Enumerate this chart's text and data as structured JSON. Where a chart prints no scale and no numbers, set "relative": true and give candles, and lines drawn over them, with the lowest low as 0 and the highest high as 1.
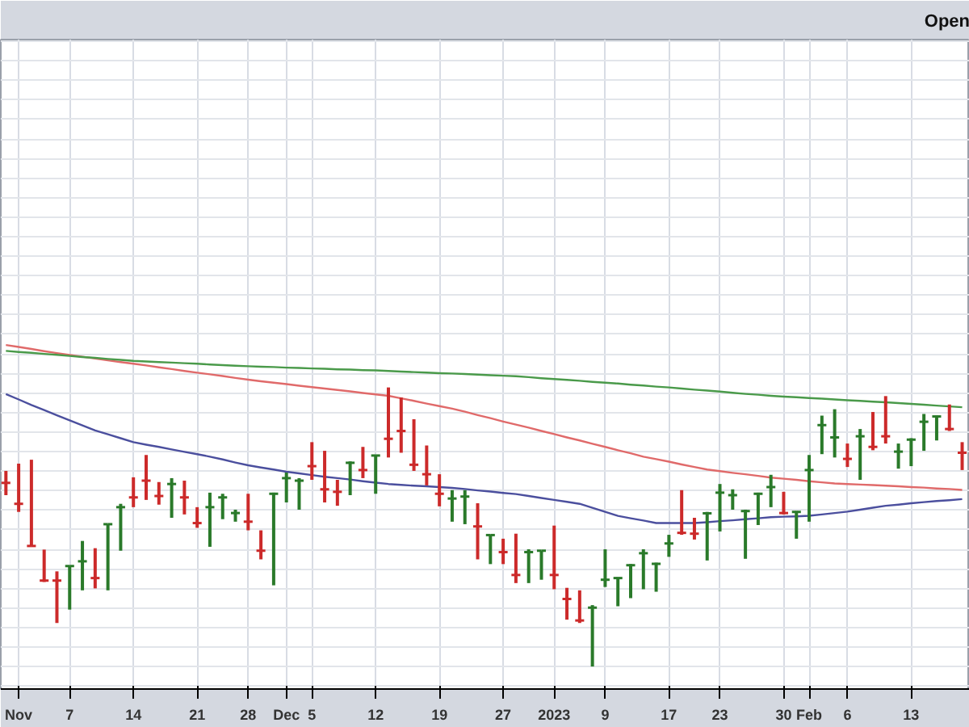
{
  "chart_data": {
    "type": "candlestick",
    "relative": true,
    "grid": true,
    "annotations": [
      "Open"
    ],
    "categories": [
      null,
      "Nov",
      null,
      null,
      null,
      "7",
      null,
      null,
      null,
      null,
      "14",
      null,
      null,
      null,
      null,
      "21",
      null,
      null,
      null,
      "28",
      null,
      null,
      "Dec",
      null,
      "5",
      null,
      null,
      null,
      null,
      "12",
      null,
      null,
      null,
      null,
      "19",
      null,
      null,
      null,
      null,
      "27",
      null,
      null,
      null,
      "2023",
      null,
      null,
      null,
      "9",
      null,
      null,
      null,
      null,
      "17",
      null,
      null,
      null,
      "23",
      null,
      null,
      null,
      null,
      "30",
      null,
      "Feb",
      null,
      null,
      "6",
      null,
      null,
      null,
      null,
      "13",
      null,
      null,
      null,
      null
    ],
    "ohlc": [
      [
        0.658,
        0.701,
        0.614,
        0.658
      ],
      [
        0.583,
        0.727,
        0.554,
        0.583
      ],
      [
        0.432,
        0.741,
        0.432,
        0.432
      ],
      [
        0.308,
        0.419,
        0.303,
        0.308
      ],
      [
        0.308,
        0.341,
        0.156,
        0.308
      ],
      [
        0.36,
        0.36,
        0.204,
        0.36
      ],
      [
        0.377,
        0.45,
        0.273,
        0.377
      ],
      [
        0.317,
        0.424,
        0.28,
        0.317
      ],
      [
        0.51,
        0.51,
        0.273,
        0.51
      ],
      [
        0.571,
        0.583,
        0.415,
        0.571
      ],
      [
        0.606,
        0.678,
        0.571,
        0.606
      ],
      [
        0.666,
        0.758,
        0.597,
        0.666
      ],
      [
        0.611,
        0.661,
        0.58,
        0.611
      ],
      [
        0.654,
        0.675,
        0.533,
        0.654
      ],
      [
        0.606,
        0.666,
        0.545,
        0.606
      ],
      [
        0.514,
        0.571,
        0.497,
        0.514
      ],
      [
        0.571,
        0.623,
        0.429,
        0.571
      ],
      [
        0.606,
        0.619,
        0.528,
        0.606
      ],
      [
        0.55,
        0.562,
        0.519,
        0.55
      ],
      [
        0.519,
        0.619,
        0.488,
        0.519
      ],
      [
        0.415,
        0.488,
        0.384,
        0.415
      ],
      [
        0.619,
        0.623,
        0.291,
        0.619
      ],
      [
        0.675,
        0.695,
        0.588,
        0.675
      ],
      [
        0.666,
        0.675,
        0.562,
        0.666
      ],
      [
        0.718,
        0.804,
        0.669,
        0.718
      ],
      [
        0.635,
        0.773,
        0.588,
        0.635
      ],
      [
        0.626,
        0.669,
        0.576,
        0.626
      ],
      [
        0.73,
        0.735,
        0.614,
        0.73
      ],
      [
        0.704,
        0.787,
        0.675,
        0.704
      ],
      [
        0.756,
        0.758,
        0.619,
        0.756
      ],
      [
        0.816,
        1.0,
        0.749,
        0.816
      ],
      [
        0.844,
        0.964,
        0.766,
        0.844
      ],
      [
        0.723,
        0.886,
        0.701,
        0.723
      ],
      [
        0.689,
        0.792,
        0.649,
        0.689
      ],
      [
        0.619,
        0.689,
        0.574,
        0.619
      ],
      [
        0.602,
        0.632,
        0.519,
        0.602
      ],
      [
        0.609,
        0.632,
        0.51,
        0.609
      ],
      [
        0.502,
        0.585,
        0.384,
        0.502
      ],
      [
        0.471,
        0.472,
        0.367,
        0.471
      ],
      [
        0.41,
        0.458,
        0.367,
        0.41
      ],
      [
        0.328,
        0.476,
        0.299,
        0.328
      ],
      [
        0.41,
        0.42,
        0.299,
        0.41
      ],
      [
        0.415,
        0.415,
        0.311,
        0.415
      ],
      [
        0.328,
        0.505,
        0.277,
        0.328
      ],
      [
        0.242,
        0.282,
        0.168,
        0.242
      ],
      [
        0.165,
        0.273,
        0.156,
        0.165
      ],
      [
        0.211,
        0.22,
        0.0,
        0.211
      ],
      [
        0.311,
        0.42,
        0.285,
        0.311
      ],
      [
        0.317,
        0.32,
        0.216,
        0.317
      ],
      [
        0.363,
        0.367,
        0.245,
        0.363
      ],
      [
        0.406,
        0.42,
        0.277,
        0.406
      ],
      [
        0.368,
        0.372,
        0.268,
        0.368
      ],
      [
        0.441,
        0.472,
        0.393,
        0.441
      ],
      [
        0.479,
        0.632,
        0.472,
        0.479
      ],
      [
        0.476,
        0.533,
        0.455,
        0.476
      ],
      [
        0.549,
        0.554,
        0.38,
        0.549
      ],
      [
        0.623,
        0.654,
        0.484,
        0.623
      ],
      [
        0.614,
        0.635,
        0.562,
        0.614
      ],
      [
        0.557,
        0.562,
        0.386,
        0.557
      ],
      [
        0.619,
        0.623,
        0.507,
        0.619
      ],
      [
        0.643,
        0.687,
        0.571,
        0.643
      ],
      [
        0.55,
        0.626,
        0.545,
        0.55
      ],
      [
        0.554,
        0.557,
        0.458,
        0.554
      ],
      [
        0.704,
        0.758,
        0.519,
        0.704
      ],
      [
        0.865,
        0.899,
        0.761,
        0.865
      ],
      [
        0.821,
        0.922,
        0.749,
        0.821
      ],
      [
        0.744,
        0.799,
        0.715,
        0.744
      ],
      [
        0.825,
        0.851,
        0.669,
        0.825
      ],
      [
        0.787,
        0.912,
        0.775,
        0.787
      ],
      [
        0.825,
        0.969,
        0.799,
        0.825
      ],
      [
        0.77,
        0.799,
        0.709,
        0.77
      ],
      [
        0.813,
        0.818,
        0.718,
        0.813
      ],
      [
        0.877,
        0.905,
        0.773,
        0.877
      ],
      [
        0.896,
        0.899,
        0.81,
        0.896
      ],
      [
        0.851,
        0.939,
        0.844,
        0.851
      ],
      [
        0.766,
        0.804,
        0.704,
        0.766
      ]
    ],
    "colors": [
      "#cc2a2a",
      "#cc2a2a",
      "#cc2a2a",
      "#cc2a2a",
      "#cc2a2a",
      "#2a7a2a",
      "#2a7a2a",
      "#cc2a2a",
      "#2a7a2a",
      "#2a7a2a",
      "#cc2a2a",
      "#cc2a2a",
      "#cc2a2a",
      "#2a7a2a",
      "#cc2a2a",
      "#cc2a2a",
      "#2a7a2a",
      "#2a7a2a",
      "#2a7a2a",
      "#cc2a2a",
      "#cc2a2a",
      "#2a7a2a",
      "#2a7a2a",
      "#2a7a2a",
      "#cc2a2a",
      "#cc2a2a",
      "#cc2a2a",
      "#2a7a2a",
      "#cc2a2a",
      "#2a7a2a",
      "#cc2a2a",
      "#cc2a2a",
      "#cc2a2a",
      "#cc2a2a",
      "#cc2a2a",
      "#2a7a2a",
      "#2a7a2a",
      "#cc2a2a",
      "#2a7a2a",
      "#cc2a2a",
      "#cc2a2a",
      "#2a7a2a",
      "#2a7a2a",
      "#cc2a2a",
      "#cc2a2a",
      "#cc2a2a",
      "#2a7a2a",
      "#2a7a2a",
      "#2a7a2a",
      "#2a7a2a",
      "#2a7a2a",
      "#2a7a2a",
      "#2a7a2a",
      "#cc2a2a",
      "#cc2a2a",
      "#2a7a2a",
      "#2a7a2a",
      "#2a7a2a",
      "#2a7a2a",
      "#2a7a2a",
      "#2a7a2a",
      "#cc2a2a",
      "#2a7a2a",
      "#2a7a2a",
      "#2a7a2a",
      "#2a7a2a",
      "#cc2a2a",
      "#2a7a2a",
      "#cc2a2a",
      "#cc2a2a",
      "#2a7a2a",
      "#2a7a2a",
      "#2a7a2a",
      "#2a7a2a",
      "#cc2a2a",
      "#cc2a2a"
    ],
    "series": [
      {
        "type": "line",
        "color": "#4b4f9e",
        "values": [
          0.976,
          0.957,
          0.937,
          0.919,
          0.9,
          0.882,
          0.864,
          0.846,
          0.832,
          0.818,
          0.804,
          0.795,
          0.787,
          0.778,
          0.769,
          0.761,
          0.752,
          0.742,
          0.731,
          0.721,
          0.713,
          0.706,
          0.698,
          0.692,
          0.686,
          0.68,
          0.675,
          0.67,
          0.664,
          0.659,
          0.654,
          0.651,
          0.648,
          0.646,
          0.643,
          0.64,
          0.636,
          0.631,
          0.627,
          0.622,
          0.618,
          0.611,
          0.604,
          0.597,
          0.59,
          0.583,
          0.569,
          0.554,
          0.54,
          0.531,
          0.523,
          0.514,
          0.514,
          0.514,
          0.514,
          0.517,
          0.521,
          0.524,
          0.528,
          0.531,
          0.535,
          0.537,
          0.538,
          0.54,
          0.545,
          0.55,
          0.555,
          0.562,
          0.569,
          0.576,
          0.58,
          0.585,
          0.589,
          0.593,
          0.596,
          0.6
        ]
      },
      {
        "type": "line",
        "color": "#e06a6a",
        "values": [
          1.152,
          1.145,
          1.138,
          1.13,
          1.123,
          1.116,
          1.11,
          1.104,
          1.097,
          1.091,
          1.085,
          1.079,
          1.072,
          1.066,
          1.059,
          1.053,
          1.047,
          1.041,
          1.034,
          1.028,
          1.022,
          1.017,
          1.012,
          1.006,
          1.001,
          0.996,
          0.991,
          0.986,
          0.98,
          0.975,
          0.97,
          0.961,
          0.952,
          0.942,
          0.933,
          0.924,
          0.913,
          0.901,
          0.89,
          0.878,
          0.867,
          0.856,
          0.844,
          0.833,
          0.821,
          0.81,
          0.798,
          0.787,
          0.775,
          0.764,
          0.752,
          0.743,
          0.734,
          0.724,
          0.715,
          0.706,
          0.7,
          0.694,
          0.689,
          0.683,
          0.677,
          0.673,
          0.669,
          0.664,
          0.66,
          0.656,
          0.654,
          0.652,
          0.65,
          0.648,
          0.646,
          0.643,
          0.641,
          0.638,
          0.636,
          0.633
        ]
      },
      {
        "type": "line",
        "color": "#4a9a4a",
        "values": [
          1.131,
          1.127,
          1.124,
          1.12,
          1.117,
          1.113,
          1.109,
          1.106,
          1.102,
          1.099,
          1.095,
          1.093,
          1.091,
          1.089,
          1.087,
          1.085,
          1.082,
          1.08,
          1.078,
          1.076,
          1.074,
          1.073,
          1.071,
          1.07,
          1.068,
          1.067,
          1.065,
          1.064,
          1.062,
          1.061,
          1.059,
          1.057,
          1.055,
          1.053,
          1.051,
          1.05,
          1.048,
          1.046,
          1.044,
          1.042,
          1.04,
          1.037,
          1.033,
          1.03,
          1.027,
          1.024,
          1.02,
          1.017,
          1.014,
          1.01,
          1.007,
          1.003,
          1.0,
          0.996,
          0.992,
          0.989,
          0.985,
          0.981,
          0.977,
          0.974,
          0.97,
          0.967,
          0.965,
          0.962,
          0.96,
          0.957,
          0.954,
          0.952,
          0.949,
          0.947,
          0.944,
          0.941,
          0.938,
          0.935,
          0.932,
          0.929
        ]
      }
    ]
  }
}
